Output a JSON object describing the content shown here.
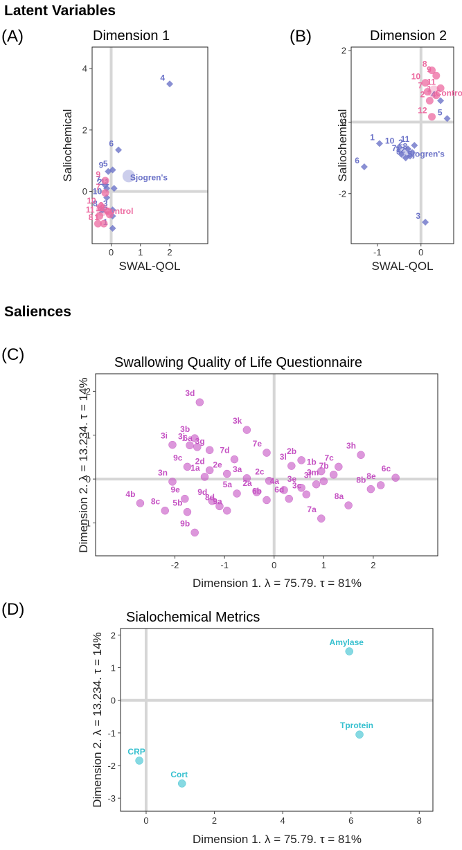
{
  "sections": {
    "latent": "Latent Variables",
    "saliences": "Saliences"
  },
  "colors": {
    "sjogren": "#6c73c8",
    "control": "#ec6aa0",
    "item": "#c552c3",
    "metric": "#36c0cf",
    "zero_line": "#d6d6d6"
  },
  "chart_data": [
    {
      "id": "A",
      "panel_label": "(A)",
      "type": "scatter",
      "title": "Dimension 1",
      "xlabel": "SWAL-QOL",
      "ylabel": "Saliochemical",
      "xlim": [
        -0.65,
        3.3
      ],
      "ylim": [
        -1.7,
        4.7
      ],
      "xticks": [
        0,
        1,
        2
      ],
      "yticks": [
        0,
        2,
        4
      ],
      "series": [
        {
          "name": "Sjogren's",
          "marker": "diamond",
          "points": [
            {
              "label": "1",
              "x": 0.05,
              "y": -1.2
            },
            {
              "label": "2",
              "x": -0.15,
              "y": 0.1
            },
            {
              "label": "3",
              "x": 0.05,
              "y": -0.6
            },
            {
              "label": "4",
              "x": 2.0,
              "y": 3.5
            },
            {
              "label": "5",
              "x": 0.05,
              "y": 0.7
            },
            {
              "label": "6",
              "x": 0.25,
              "y": 1.35
            },
            {
              "label": "7",
              "x": -0.2,
              "y": 0.2
            },
            {
              "label": "8",
              "x": -0.3,
              "y": -0.6
            },
            {
              "label": "9",
              "x": -0.1,
              "y": 0.65
            },
            {
              "label": "10",
              "x": -0.15,
              "y": -0.2
            },
            {
              "label": "11",
              "x": 0.1,
              "y": 0.1
            },
            {
              "label": "12",
              "x": 0.05,
              "y": -0.8
            }
          ],
          "centroid": {
            "label": "Sjogren's",
            "x": 0.6,
            "y": 0.5
          }
        },
        {
          "name": "Control",
          "marker": "circle",
          "points": [
            {
              "label": "7",
              "x": -0.2,
              "y": -0.05
            },
            {
              "label": "8",
              "x": -0.45,
              "y": -1.05
            },
            {
              "label": "9",
              "x": -0.2,
              "y": 0.35
            },
            {
              "label": "10",
              "x": -0.35,
              "y": -0.5
            },
            {
              "label": "11",
              "x": -0.4,
              "y": -0.8
            },
            {
              "label": "12",
              "x": -0.05,
              "y": -0.75
            },
            {
              "label": "1",
              "x": -0.25,
              "y": -1.05
            },
            {
              "label": "2",
              "x": -0.1,
              "y": -0.65
            }
          ],
          "centroid": {
            "label": "Control",
            "x": -0.3,
            "y": -0.6
          }
        }
      ]
    },
    {
      "id": "B",
      "panel_label": "(B)",
      "type": "scatter",
      "title": "Dimension 2",
      "xlabel": "SWAL-QOL",
      "ylabel": "Saliochemical",
      "xlim": [
        -1.6,
        0.75
      ],
      "ylim": [
        -3.4,
        2.1
      ],
      "xticks": [
        -1,
        0
      ],
      "yticks": [
        -2,
        0,
        2
      ],
      "series": [
        {
          "name": "Sjogren's",
          "marker": "diamond",
          "points": [
            {
              "label": "1",
              "x": -0.95,
              "y": -0.6
            },
            {
              "label": "2",
              "x": -0.3,
              "y": -0.75
            },
            {
              "label": "3",
              "x": 0.1,
              "y": -2.8
            },
            {
              "label": "4",
              "x": 0.45,
              "y": 0.6
            },
            {
              "label": "5",
              "x": 0.6,
              "y": 0.1
            },
            {
              "label": "6",
              "x": -1.3,
              "y": -1.25
            },
            {
              "label": "7",
              "x": -0.45,
              "y": -0.9
            },
            {
              "label": "8",
              "x": -0.2,
              "y": -0.85
            },
            {
              "label": "9",
              "x": -0.35,
              "y": -1.0
            },
            {
              "label": "10",
              "x": -0.5,
              "y": -0.7
            },
            {
              "label": "11",
              "x": -0.15,
              "y": -0.65
            },
            {
              "label": "12",
              "x": -0.25,
              "y": -0.95
            }
          ],
          "centroid": {
            "label": "Sjogren's",
            "x": -0.35,
            "y": -0.85
          }
        },
        {
          "name": "Control",
          "marker": "circle",
          "points": [
            {
              "label": "7",
              "x": 0.15,
              "y": 0.85
            },
            {
              "label": "8",
              "x": 0.25,
              "y": 1.45
            },
            {
              "label": "9",
              "x": 0.35,
              "y": 1.3
            },
            {
              "label": "10",
              "x": 0.1,
              "y": 1.1
            },
            {
              "label": "11",
              "x": 0.45,
              "y": 0.95
            },
            {
              "label": "12",
              "x": 0.25,
              "y": 0.15
            },
            {
              "label": "1",
              "x": 0.35,
              "y": 0.75
            },
            {
              "label": "2",
              "x": 0.2,
              "y": 0.6
            }
          ],
          "centroid": {
            "label": "Control",
            "x": 0.3,
            "y": 0.85
          }
        }
      ]
    },
    {
      "id": "C",
      "panel_label": "(C)",
      "type": "scatter",
      "title": "Swallowing Quality of Life Questionnaire",
      "xlabel": "Dimension 1.  λ = 75.79.  τ = 81%",
      "ylabel": "Dimension 2.  λ = 13.234.  τ = 14%",
      "xlim": [
        -3.6,
        3.3
      ],
      "ylim": [
        -1.75,
        2.4
      ],
      "xticks": [
        -2,
        -1,
        0,
        1,
        2
      ],
      "yticks": [
        -1,
        0,
        1,
        2
      ],
      "points": [
        {
          "label": "3d",
          "x": -1.5,
          "y": 1.75
        },
        {
          "label": "3k",
          "x": -0.55,
          "y": 1.12
        },
        {
          "label": "3b",
          "x": -1.6,
          "y": 0.93
        },
        {
          "label": "3j",
          "x": -1.7,
          "y": 0.77
        },
        {
          "label": "3i",
          "x": -2.05,
          "y": 0.78
        },
        {
          "label": "6a",
          "x": -1.55,
          "y": 0.73
        },
        {
          "label": "3g",
          "x": -1.3,
          "y": 0.66
        },
        {
          "label": "7e",
          "x": -0.15,
          "y": 0.6
        },
        {
          "label": "7d",
          "x": -0.8,
          "y": 0.45
        },
        {
          "label": "2b",
          "x": 0.55,
          "y": 0.43
        },
        {
          "label": "7c",
          "x": 1.3,
          "y": 0.28
        },
        {
          "label": "3h",
          "x": 1.75,
          "y": 0.55
        },
        {
          "label": "3l",
          "x": 0.35,
          "y": 0.3
        },
        {
          "label": "9c",
          "x": -1.75,
          "y": 0.28
        },
        {
          "label": "2d",
          "x": -1.3,
          "y": 0.2
        },
        {
          "label": "2e",
          "x": -0.95,
          "y": 0.12
        },
        {
          "label": "1b",
          "x": 0.95,
          "y": 0.18
        },
        {
          "label": "7b",
          "x": 1.2,
          "y": 0.1
        },
        {
          "label": "3n",
          "x": -2.05,
          "y": -0.06
        },
        {
          "label": "1a",
          "x": -1.4,
          "y": 0.05
        },
        {
          "label": "3a",
          "x": -0.55,
          "y": 0.02
        },
        {
          "label": "2c",
          "x": -0.1,
          "y": -0.04
        },
        {
          "label": "3m",
          "x": 1.0,
          "y": -0.05
        },
        {
          "label": "8e",
          "x": 2.15,
          "y": -0.14
        },
        {
          "label": "6c",
          "x": 2.45,
          "y": 0.03
        },
        {
          "label": "8b",
          "x": 1.95,
          "y": -0.23
        },
        {
          "label": "9e",
          "x": -1.8,
          "y": -0.45
        },
        {
          "label": "9d",
          "x": -1.25,
          "y": -0.5
        },
        {
          "label": "5a",
          "x": -0.75,
          "y": -0.33
        },
        {
          "label": "2a",
          "x": -0.35,
          "y": -0.3
        },
        {
          "label": "4a",
          "x": 0.2,
          "y": -0.25
        },
        {
          "label": "3e",
          "x": 0.55,
          "y": -0.2
        },
        {
          "label": "3f",
          "x": 0.85,
          "y": -0.12
        },
        {
          "label": "4b",
          "x": -2.7,
          "y": -0.55
        },
        {
          "label": "5b",
          "x": -1.75,
          "y": -0.75
        },
        {
          "label": "8d",
          "x": -1.1,
          "y": -0.62
        },
        {
          "label": "6b",
          "x": -0.15,
          "y": -0.48
        },
        {
          "label": "6d",
          "x": 0.3,
          "y": -0.45
        },
        {
          "label": "3c",
          "x": 0.65,
          "y": -0.35
        },
        {
          "label": "8a",
          "x": 1.5,
          "y": -0.6
        },
        {
          "label": "8c",
          "x": -2.2,
          "y": -0.72
        },
        {
          "label": "9a",
          "x": -0.95,
          "y": -0.72
        },
        {
          "label": "7a",
          "x": 0.95,
          "y": -0.9
        },
        {
          "label": "9b",
          "x": -1.6,
          "y": -1.22
        }
      ]
    },
    {
      "id": "D",
      "panel_label": "(D)",
      "type": "scatter",
      "title": "Sialochemical Metrics",
      "xlabel": "Dimension 1.  λ = 75.79.  τ = 81%",
      "ylabel": "Dimension 2.  λ = 13.234.  τ = 14%",
      "xlim": [
        -0.75,
        8.4
      ],
      "ylim": [
        -3.4,
        2.2
      ],
      "xticks": [
        0,
        2,
        4,
        6,
        8
      ],
      "yticks": [
        -3,
        -2,
        -1,
        0,
        1,
        2
      ],
      "points": [
        {
          "label": "Amylase",
          "x": 5.95,
          "y": 1.5
        },
        {
          "label": "Tprotein",
          "x": 6.25,
          "y": -1.05
        },
        {
          "label": "CRP",
          "x": -0.2,
          "y": -1.85
        },
        {
          "label": "Cort",
          "x": 1.05,
          "y": -2.55
        }
      ]
    }
  ]
}
